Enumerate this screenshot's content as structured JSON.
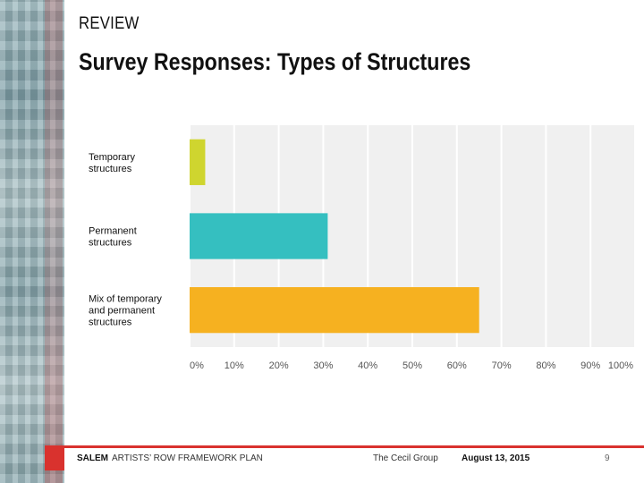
{
  "header": {
    "section": "REVIEW",
    "title": "Survey Responses: Types of Structures"
  },
  "chart_data": {
    "type": "bar",
    "orientation": "horizontal",
    "categories": [
      [
        "Temporary",
        "structures"
      ],
      [
        "Permanent",
        "structures"
      ],
      [
        "Mix of temporary",
        "and permanent",
        "structures"
      ]
    ],
    "values": [
      3.5,
      31,
      65
    ],
    "colors": [
      "#cfd52f",
      "#35bfc0",
      "#f6b120"
    ],
    "xlim": [
      0,
      100
    ],
    "xticks": [
      "0%",
      "10%",
      "20%",
      "30%",
      "40%",
      "50%",
      "60%",
      "70%",
      "80%",
      "90%",
      "100%"
    ],
    "grid": true,
    "background": "#f0f0f0"
  },
  "footer": {
    "brand": "SALEM",
    "brand_sub": "ARTISTS’ ROW FRAMEWORK PLAN",
    "org": "The Cecil Group",
    "date": "August 13, 2015",
    "page": "9"
  }
}
